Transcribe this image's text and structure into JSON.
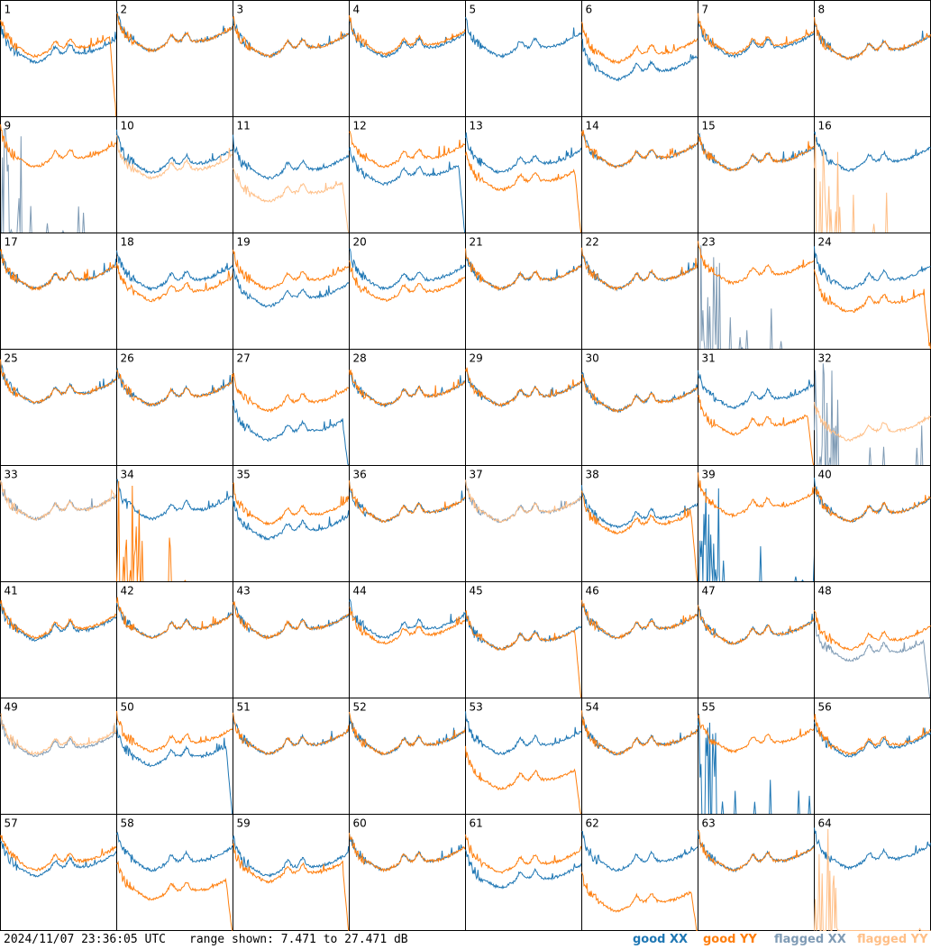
{
  "footer": {
    "timestamp": "2024/11/07 23:36:05 UTC",
    "range_text": "range shown: 7.471 to 27.471 dB"
  },
  "legend": [
    {
      "label": "good XX",
      "color": "#1f77b4"
    },
    {
      "label": "good YY",
      "color": "#ff7f0e"
    },
    {
      "label": "flagged XX",
      "color": "#7f9bb5"
    },
    {
      "label": "flagged YY",
      "color": "#ffbf87"
    }
  ],
  "chart_data": {
    "type": "line",
    "grid": "8x8 small-multiples",
    "ylim": [
      7.471,
      27.471
    ],
    "yunit": "dB",
    "panels": [
      {
        "id": "1",
        "xx": "good",
        "yy": "good",
        "xx_level": 0.55,
        "yy_level": 0.6,
        "xx_drop": 0.0,
        "yy_drop": 1.0
      },
      {
        "id": "2",
        "xx": "good",
        "yy": "good",
        "xx_level": 0.65,
        "yy_level": 0.65,
        "xx_drop": 0.0,
        "yy_drop": 0.0
      },
      {
        "id": "3",
        "xx": "good",
        "yy": "good",
        "xx_level": 0.6,
        "yy_level": 0.6,
        "xx_drop": 0.0,
        "yy_drop": 0.0
      },
      {
        "id": "4",
        "xx": "good",
        "yy": "good",
        "xx_level": 0.6,
        "yy_level": 0.62,
        "xx_drop": 0.0,
        "yy_drop": 0.0
      },
      {
        "id": "5",
        "xx": "good",
        "yy": "none",
        "xx_level": 0.6,
        "yy_level": 0.0,
        "xx_drop": 0.0,
        "yy_drop": 0.0
      },
      {
        "id": "6",
        "xx": "good",
        "yy": "good",
        "xx_level": 0.4,
        "yy_level": 0.55,
        "xx_drop": 0.0,
        "yy_drop": 0.0
      },
      {
        "id": "7",
        "xx": "good",
        "yy": "good",
        "xx_level": 0.6,
        "yy_level": 0.62,
        "xx_drop": 0.0,
        "yy_drop": 0.0
      },
      {
        "id": "8",
        "xx": "good",
        "yy": "good",
        "xx_level": 0.58,
        "yy_level": 0.58,
        "xx_drop": 0.0,
        "yy_drop": 0.0
      },
      {
        "id": "9",
        "xx": "flagged",
        "yy": "good",
        "xx_level": 0.0,
        "yy_level": 0.65,
        "xx_drop": 0.0,
        "yy_drop": 0.0
      },
      {
        "id": "10",
        "xx": "good",
        "yy": "flagged",
        "xx_level": 0.6,
        "yy_level": 0.55,
        "xx_drop": 0.0,
        "yy_drop": 0.0
      },
      {
        "id": "11",
        "xx": "good",
        "yy": "flagged",
        "xx_level": 0.55,
        "yy_level": 0.35,
        "xx_drop": 0.0,
        "yy_drop": 1.0
      },
      {
        "id": "12",
        "xx": "good",
        "yy": "good",
        "xx_level": 0.5,
        "yy_level": 0.65,
        "xx_drop": 1.0,
        "yy_drop": 0.0
      },
      {
        "id": "13",
        "xx": "good",
        "yy": "good",
        "xx_level": 0.6,
        "yy_level": 0.45,
        "xx_drop": 0.0,
        "yy_drop": 1.0
      },
      {
        "id": "14",
        "xx": "good",
        "yy": "good",
        "xx_level": 0.65,
        "yy_level": 0.65,
        "xx_drop": 0.0,
        "yy_drop": 0.0
      },
      {
        "id": "15",
        "xx": "good",
        "yy": "good",
        "xx_level": 0.62,
        "yy_level": 0.62,
        "xx_drop": 0.0,
        "yy_drop": 0.0
      },
      {
        "id": "16",
        "xx": "good",
        "yy": "flagged",
        "xx_level": 0.62,
        "yy_level": 0.0,
        "xx_drop": 0.0,
        "yy_drop": 0.0
      },
      {
        "id": "17",
        "xx": "good",
        "yy": "good",
        "xx_level": 0.6,
        "yy_level": 0.6,
        "xx_drop": 0.0,
        "yy_drop": 0.0
      },
      {
        "id": "18",
        "xx": "good",
        "yy": "good",
        "xx_level": 0.6,
        "yy_level": 0.5,
        "xx_drop": 0.0,
        "yy_drop": 0.0
      },
      {
        "id": "19",
        "xx": "good",
        "yy": "good",
        "xx_level": 0.45,
        "yy_level": 0.6,
        "xx_drop": 0.0,
        "yy_drop": 0.0
      },
      {
        "id": "20",
        "xx": "good",
        "yy": "good",
        "xx_level": 0.6,
        "yy_level": 0.5,
        "xx_drop": 0.0,
        "yy_drop": 0.0
      },
      {
        "id": "21",
        "xx": "good",
        "yy": "good",
        "xx_level": 0.6,
        "yy_level": 0.6,
        "xx_drop": 0.0,
        "yy_drop": 0.0
      },
      {
        "id": "22",
        "xx": "good",
        "yy": "good",
        "xx_level": 0.6,
        "yy_level": 0.6,
        "xx_drop": 0.0,
        "yy_drop": 0.0
      },
      {
        "id": "23",
        "xx": "flagged",
        "yy": "good",
        "xx_level": 0.0,
        "yy_level": 0.65,
        "xx_drop": 0.0,
        "yy_drop": 0.0
      },
      {
        "id": "24",
        "xx": "good",
        "yy": "good",
        "xx_level": 0.6,
        "yy_level": 0.4,
        "xx_drop": 0.0,
        "yy_drop": 1.0
      },
      {
        "id": "25",
        "xx": "good",
        "yy": "good",
        "xx_level": 0.62,
        "yy_level": 0.62,
        "xx_drop": 0.0,
        "yy_drop": 0.0
      },
      {
        "id": "26",
        "xx": "good",
        "yy": "good",
        "xx_level": 0.6,
        "yy_level": 0.6,
        "xx_drop": 0.0,
        "yy_drop": 0.0
      },
      {
        "id": "27",
        "xx": "good",
        "yy": "good",
        "xx_level": 0.3,
        "yy_level": 0.55,
        "xx_drop": 1.0,
        "yy_drop": 0.0
      },
      {
        "id": "28",
        "xx": "good",
        "yy": "good",
        "xx_level": 0.6,
        "yy_level": 0.6,
        "xx_drop": 0.0,
        "yy_drop": 0.0
      },
      {
        "id": "29",
        "xx": "good",
        "yy": "good",
        "xx_level": 0.6,
        "yy_level": 0.6,
        "xx_drop": 0.0,
        "yy_drop": 0.0
      },
      {
        "id": "30",
        "xx": "good",
        "yy": "good",
        "xx_level": 0.55,
        "yy_level": 0.55,
        "xx_drop": 0.0,
        "yy_drop": 0.0
      },
      {
        "id": "31",
        "xx": "good",
        "yy": "good",
        "xx_level": 0.58,
        "yy_level": 0.35,
        "xx_drop": 0.0,
        "yy_drop": 1.0
      },
      {
        "id": "32",
        "xx": "flagged",
        "yy": "flagged",
        "xx_level": 0.0,
        "yy_level": 0.3,
        "xx_drop": 0.0,
        "yy_drop": 0.0
      },
      {
        "id": "33",
        "xx": "flagged",
        "yy": "flagged",
        "xx_level": 0.62,
        "yy_level": 0.62,
        "xx_drop": 0.0,
        "yy_drop": 0.0
      },
      {
        "id": "34",
        "xx": "good",
        "yy": "good",
        "xx_level": 0.62,
        "yy_level": 0.0,
        "xx_drop": 0.0,
        "yy_drop": 0.0
      },
      {
        "id": "35",
        "xx": "good",
        "yy": "good",
        "xx_level": 0.45,
        "yy_level": 0.58,
        "xx_drop": 0.0,
        "yy_drop": 0.0
      },
      {
        "id": "36",
        "xx": "good",
        "yy": "good",
        "xx_level": 0.6,
        "yy_level": 0.6,
        "xx_drop": 0.0,
        "yy_drop": 0.0
      },
      {
        "id": "37",
        "xx": "flagged",
        "yy": "flagged",
        "xx_level": 0.6,
        "yy_level": 0.6,
        "xx_drop": 0.0,
        "yy_drop": 0.0
      },
      {
        "id": "38",
        "xx": "good",
        "yy": "good",
        "xx_level": 0.55,
        "yy_level": 0.5,
        "xx_drop": 0.0,
        "yy_drop": 1.0
      },
      {
        "id": "39",
        "xx": "good",
        "yy": "good",
        "xx_level": 0.0,
        "yy_level": 0.65,
        "xx_drop": 0.0,
        "yy_drop": 0.0
      },
      {
        "id": "40",
        "xx": "good",
        "yy": "good",
        "xx_level": 0.6,
        "yy_level": 0.6,
        "xx_drop": 0.0,
        "yy_drop": 0.0
      },
      {
        "id": "41",
        "xx": "good",
        "yy": "good",
        "xx_level": 0.58,
        "yy_level": 0.6,
        "xx_drop": 0.0,
        "yy_drop": 0.0
      },
      {
        "id": "42",
        "xx": "good",
        "yy": "good",
        "xx_level": 0.6,
        "yy_level": 0.6,
        "xx_drop": 0.0,
        "yy_drop": 0.0
      },
      {
        "id": "43",
        "xx": "good",
        "yy": "good",
        "xx_level": 0.6,
        "yy_level": 0.6,
        "xx_drop": 0.0,
        "yy_drop": 0.0
      },
      {
        "id": "44",
        "xx": "good",
        "yy": "good",
        "xx_level": 0.6,
        "yy_level": 0.55,
        "xx_drop": 0.0,
        "yy_drop": 0.0
      },
      {
        "id": "45",
        "xx": "good",
        "yy": "good",
        "xx_level": 0.5,
        "yy_level": 0.5,
        "xx_drop": 0.0,
        "yy_drop": 1.0
      },
      {
        "id": "46",
        "xx": "good",
        "yy": "good",
        "xx_level": 0.6,
        "yy_level": 0.6,
        "xx_drop": 0.0,
        "yy_drop": 0.0
      },
      {
        "id": "47",
        "xx": "good",
        "yy": "good",
        "xx_level": 0.55,
        "yy_level": 0.55,
        "xx_drop": 0.0,
        "yy_drop": 0.0
      },
      {
        "id": "48",
        "xx": "flagged",
        "yy": "good",
        "xx_level": 0.4,
        "yy_level": 0.5,
        "xx_drop": 1.0,
        "yy_drop": 0.0
      },
      {
        "id": "49",
        "xx": "flagged",
        "yy": "flagged",
        "xx_level": 0.58,
        "yy_level": 0.6,
        "xx_drop": 0.0,
        "yy_drop": 0.0
      },
      {
        "id": "50",
        "xx": "good",
        "yy": "good",
        "xx_level": 0.5,
        "yy_level": 0.62,
        "xx_drop": 1.0,
        "yy_drop": 0.0
      },
      {
        "id": "51",
        "xx": "good",
        "yy": "good",
        "xx_level": 0.6,
        "yy_level": 0.6,
        "xx_drop": 0.0,
        "yy_drop": 0.0
      },
      {
        "id": "52",
        "xx": "good",
        "yy": "good",
        "xx_level": 0.6,
        "yy_level": 0.6,
        "xx_drop": 0.0,
        "yy_drop": 0.0
      },
      {
        "id": "53",
        "xx": "good",
        "yy": "good",
        "xx_level": 0.6,
        "yy_level": 0.3,
        "xx_drop": 0.0,
        "yy_drop": 1.0
      },
      {
        "id": "54",
        "xx": "good",
        "yy": "good",
        "xx_level": 0.6,
        "yy_level": 0.6,
        "xx_drop": 0.0,
        "yy_drop": 0.0
      },
      {
        "id": "55",
        "xx": "good",
        "yy": "good",
        "xx_level": 0.0,
        "yy_level": 0.62,
        "xx_drop": 0.0,
        "yy_drop": 0.0
      },
      {
        "id": "56",
        "xx": "good",
        "yy": "good",
        "xx_level": 0.58,
        "yy_level": 0.6,
        "xx_drop": 0.0,
        "yy_drop": 0.0
      },
      {
        "id": "57",
        "xx": "good",
        "yy": "good",
        "xx_level": 0.55,
        "yy_level": 0.6,
        "xx_drop": 0.0,
        "yy_drop": 0.0
      },
      {
        "id": "58",
        "xx": "good",
        "yy": "good",
        "xx_level": 0.6,
        "yy_level": 0.35,
        "xx_drop": 0.0,
        "yy_drop": 1.0
      },
      {
        "id": "59",
        "xx": "good",
        "yy": "good",
        "xx_level": 0.55,
        "yy_level": 0.5,
        "xx_drop": 0.0,
        "yy_drop": 1.0
      },
      {
        "id": "60",
        "xx": "good",
        "yy": "good",
        "xx_level": 0.6,
        "yy_level": 0.6,
        "xx_drop": 0.0,
        "yy_drop": 0.0
      },
      {
        "id": "61",
        "xx": "good",
        "yy": "good",
        "xx_level": 0.45,
        "yy_level": 0.58,
        "xx_drop": 0.0,
        "yy_drop": 0.0
      },
      {
        "id": "62",
        "xx": "good",
        "yy": "good",
        "xx_level": 0.6,
        "yy_level": 0.25,
        "xx_drop": 0.0,
        "yy_drop": 1.0
      },
      {
        "id": "63",
        "xx": "good",
        "yy": "good",
        "xx_level": 0.6,
        "yy_level": 0.6,
        "xx_drop": 0.0,
        "yy_drop": 0.0
      },
      {
        "id": "64",
        "xx": "good",
        "yy": "flagged",
        "xx_level": 0.62,
        "yy_level": 0.0,
        "xx_drop": 0.0,
        "yy_drop": 0.0
      }
    ]
  }
}
